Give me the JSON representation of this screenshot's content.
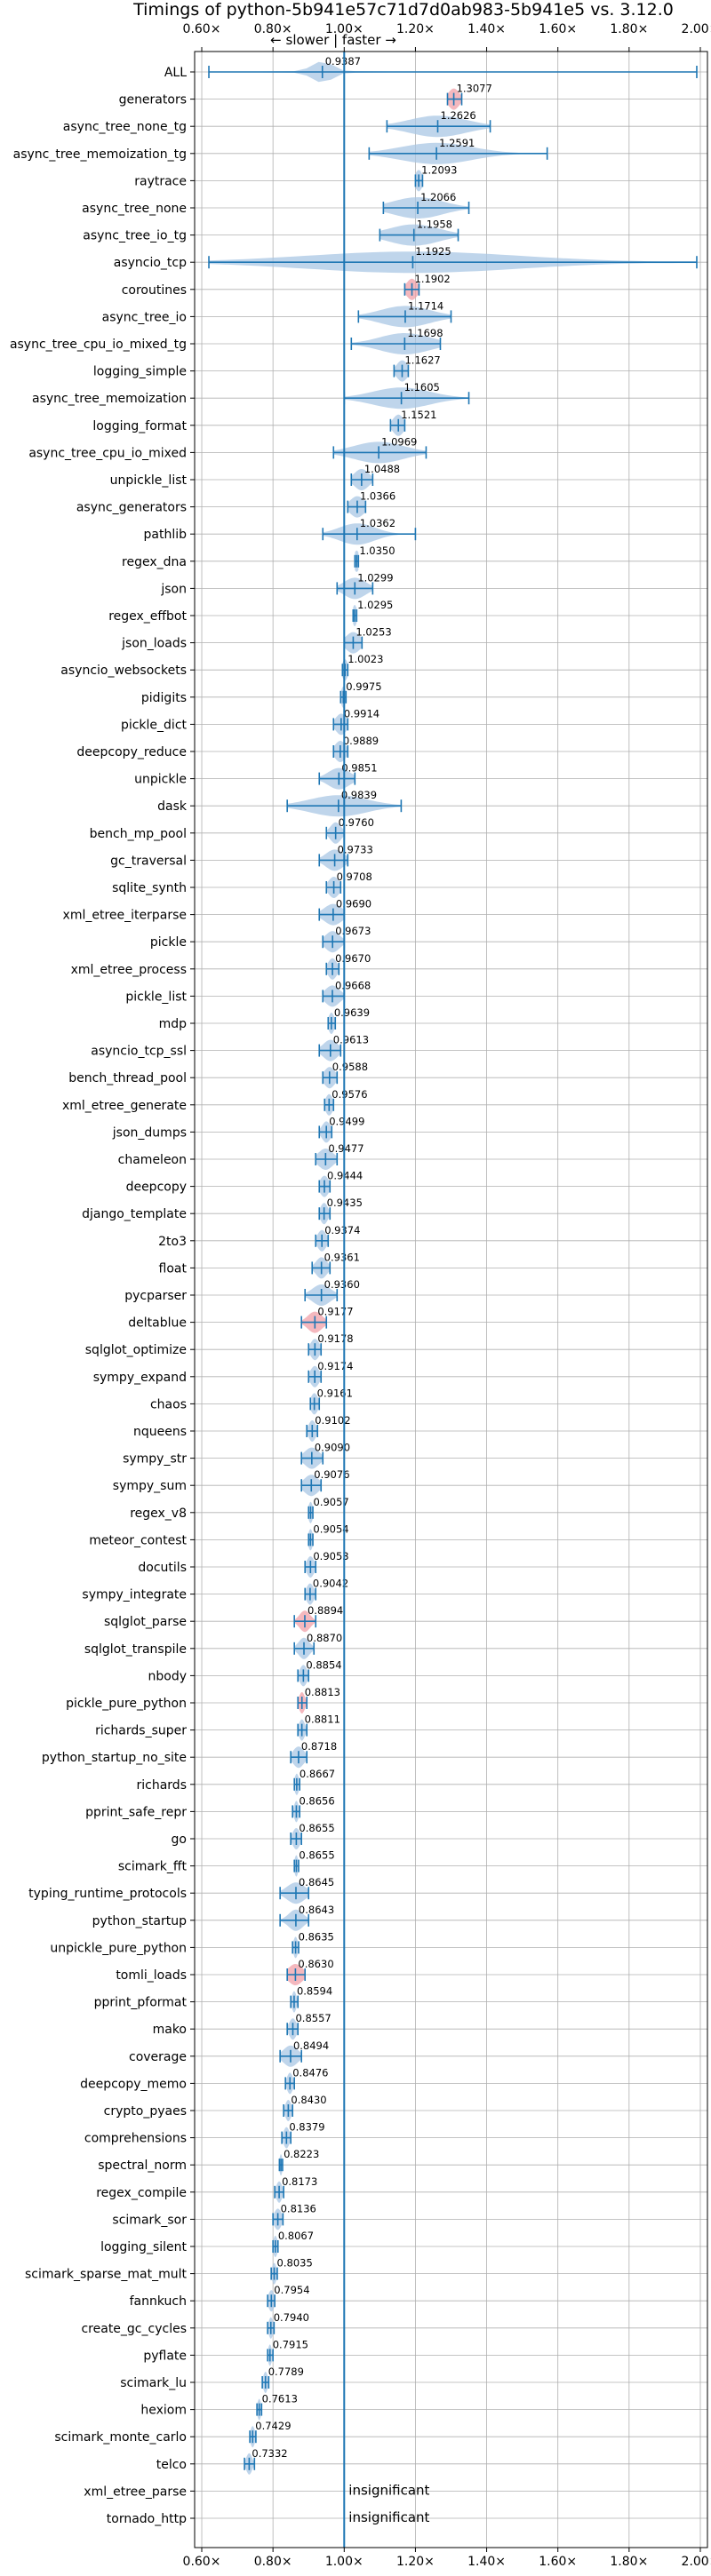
{
  "chart_data": {
    "type": "violin",
    "title": "Timings of python-5b941e57c71d7d0ab983-5b941e5 vs. 3.12.0",
    "direction_note": "← slower | faster →",
    "x_ticks": [
      "0.60×",
      "0.80×",
      "1.00×",
      "1.20×",
      "1.40×",
      "1.60×",
      "1.80×",
      "2.00×"
    ],
    "x_tick_values": [
      0.6,
      0.8,
      1.0,
      1.2,
      1.4,
      1.6,
      1.8,
      2.0
    ],
    "xlim": [
      0.58,
      2.02
    ],
    "grid": true,
    "reference_line": 1.0,
    "insignificant_label": "insignificant",
    "benchmarks": [
      {
        "name": "ALL",
        "value": "0.9387",
        "mean": 0.9387,
        "min": 0.62,
        "max": 1.99,
        "spread": 0.03,
        "color": "blue"
      },
      {
        "name": "generators",
        "value": "1.3077",
        "mean": 1.3077,
        "min": 1.29,
        "max": 1.33,
        "spread": 0.015,
        "color": "red"
      },
      {
        "name": "async_tree_none_tg",
        "value": "1.2626",
        "mean": 1.2626,
        "min": 1.12,
        "max": 1.41,
        "spread": 0.08,
        "color": "blue"
      },
      {
        "name": "async_tree_memoization_tg",
        "value": "1.2591",
        "mean": 1.2591,
        "min": 1.07,
        "max": 1.57,
        "spread": 0.1,
        "color": "blue"
      },
      {
        "name": "raytrace",
        "value": "1.2093",
        "mean": 1.2093,
        "min": 1.2,
        "max": 1.22,
        "spread": 0.01,
        "color": "blue"
      },
      {
        "name": "async_tree_none",
        "value": "1.2066",
        "mean": 1.2066,
        "min": 1.11,
        "max": 1.35,
        "spread": 0.07,
        "color": "blue"
      },
      {
        "name": "async_tree_io_tg",
        "value": "1.1958",
        "mean": 1.1958,
        "min": 1.1,
        "max": 1.32,
        "spread": 0.07,
        "color": "blue"
      },
      {
        "name": "asyncio_tcp",
        "value": "1.1925",
        "mean": 1.1925,
        "min": 0.62,
        "max": 1.99,
        "spread": 0.3,
        "color": "blue"
      },
      {
        "name": "coroutines",
        "value": "1.1902",
        "mean": 1.1902,
        "min": 1.17,
        "max": 1.21,
        "spread": 0.015,
        "color": "red"
      },
      {
        "name": "async_tree_io",
        "value": "1.1714",
        "mean": 1.1714,
        "min": 1.04,
        "max": 1.3,
        "spread": 0.07,
        "color": "blue"
      },
      {
        "name": "async_tree_cpu_io_mixed_tg",
        "value": "1.1698",
        "mean": 1.1698,
        "min": 1.02,
        "max": 1.27,
        "spread": 0.07,
        "color": "blue"
      },
      {
        "name": "logging_simple",
        "value": "1.1627",
        "mean": 1.1627,
        "min": 1.14,
        "max": 1.18,
        "spread": 0.015,
        "color": "blue"
      },
      {
        "name": "async_tree_memoization",
        "value": "1.1605",
        "mean": 1.1605,
        "min": 1.0,
        "max": 1.35,
        "spread": 0.08,
        "color": "blue"
      },
      {
        "name": "logging_format",
        "value": "1.1521",
        "mean": 1.1521,
        "min": 1.13,
        "max": 1.17,
        "spread": 0.015,
        "color": "blue"
      },
      {
        "name": "async_tree_cpu_io_mixed",
        "value": "1.0969",
        "mean": 1.0969,
        "min": 0.97,
        "max": 1.23,
        "spread": 0.07,
        "color": "blue"
      },
      {
        "name": "unpickle_list",
        "value": "1.0488",
        "mean": 1.0488,
        "min": 1.02,
        "max": 1.08,
        "spread": 0.02,
        "color": "blue"
      },
      {
        "name": "async_generators",
        "value": "1.0366",
        "mean": 1.0366,
        "min": 1.01,
        "max": 1.06,
        "spread": 0.02,
        "color": "blue"
      },
      {
        "name": "pathlib",
        "value": "1.0362",
        "mean": 1.0362,
        "min": 0.94,
        "max": 1.2,
        "spread": 0.05,
        "color": "blue"
      },
      {
        "name": "regex_dna",
        "value": "1.0350",
        "mean": 1.035,
        "min": 1.03,
        "max": 1.04,
        "spread": 0.008,
        "color": "blue"
      },
      {
        "name": "json",
        "value": "1.0299",
        "mean": 1.0299,
        "min": 0.98,
        "max": 1.08,
        "spread": 0.03,
        "color": "blue"
      },
      {
        "name": "regex_effbot",
        "value": "1.0295",
        "mean": 1.0295,
        "min": 1.025,
        "max": 1.035,
        "spread": 0.006,
        "color": "blue"
      },
      {
        "name": "json_loads",
        "value": "1.0253",
        "mean": 1.0253,
        "min": 1.0,
        "max": 1.05,
        "spread": 0.02,
        "color": "blue"
      },
      {
        "name": "asyncio_websockets",
        "value": "1.0023",
        "mean": 1.0023,
        "min": 0.995,
        "max": 1.01,
        "spread": 0.008,
        "color": "blue"
      },
      {
        "name": "pidigits",
        "value": "0.9975",
        "mean": 0.9975,
        "min": 0.99,
        "max": 1.005,
        "spread": 0.006,
        "color": "blue"
      },
      {
        "name": "pickle_dict",
        "value": "0.9914",
        "mean": 0.9914,
        "min": 0.97,
        "max": 1.01,
        "spread": 0.015,
        "color": "blue"
      },
      {
        "name": "deepcopy_reduce",
        "value": "0.9889",
        "mean": 0.9889,
        "min": 0.97,
        "max": 1.01,
        "spread": 0.015,
        "color": "blue"
      },
      {
        "name": "unpickle",
        "value": "0.9851",
        "mean": 0.9851,
        "min": 0.93,
        "max": 1.03,
        "spread": 0.03,
        "color": "blue"
      },
      {
        "name": "dask",
        "value": "0.9839",
        "mean": 0.9839,
        "min": 0.84,
        "max": 1.16,
        "spread": 0.08,
        "color": "blue"
      },
      {
        "name": "bench_mp_pool",
        "value": "0.9760",
        "mean": 0.976,
        "min": 0.95,
        "max": 1.0,
        "spread": 0.015,
        "color": "blue"
      },
      {
        "name": "gc_traversal",
        "value": "0.9733",
        "mean": 0.9733,
        "min": 0.93,
        "max": 1.01,
        "spread": 0.025,
        "color": "blue"
      },
      {
        "name": "sqlite_synth",
        "value": "0.9708",
        "mean": 0.9708,
        "min": 0.95,
        "max": 0.99,
        "spread": 0.015,
        "color": "blue"
      },
      {
        "name": "xml_etree_iterparse",
        "value": "0.9690",
        "mean": 0.969,
        "min": 0.93,
        "max": 1.0,
        "spread": 0.025,
        "color": "blue"
      },
      {
        "name": "pickle",
        "value": "0.9673",
        "mean": 0.9673,
        "min": 0.94,
        "max": 1.0,
        "spread": 0.02,
        "color": "blue"
      },
      {
        "name": "xml_etree_process",
        "value": "0.9670",
        "mean": 0.967,
        "min": 0.95,
        "max": 0.985,
        "spread": 0.012,
        "color": "blue"
      },
      {
        "name": "pickle_list",
        "value": "0.9668",
        "mean": 0.9668,
        "min": 0.94,
        "max": 1.0,
        "spread": 0.02,
        "color": "blue"
      },
      {
        "name": "mdp",
        "value": "0.9639",
        "mean": 0.9639,
        "min": 0.955,
        "max": 0.975,
        "spread": 0.008,
        "color": "blue"
      },
      {
        "name": "asyncio_tcp_ssl",
        "value": "0.9613",
        "mean": 0.9613,
        "min": 0.93,
        "max": 0.99,
        "spread": 0.02,
        "color": "blue"
      },
      {
        "name": "bench_thread_pool",
        "value": "0.9588",
        "mean": 0.9588,
        "min": 0.94,
        "max": 0.98,
        "spread": 0.015,
        "color": "blue"
      },
      {
        "name": "xml_etree_generate",
        "value": "0.9576",
        "mean": 0.9576,
        "min": 0.945,
        "max": 0.97,
        "spread": 0.01,
        "color": "blue"
      },
      {
        "name": "json_dumps",
        "value": "0.9499",
        "mean": 0.9499,
        "min": 0.93,
        "max": 0.965,
        "spread": 0.012,
        "color": "blue"
      },
      {
        "name": "chameleon",
        "value": "0.9477",
        "mean": 0.9477,
        "min": 0.92,
        "max": 0.98,
        "spread": 0.02,
        "color": "blue"
      },
      {
        "name": "deepcopy",
        "value": "0.9444",
        "mean": 0.9444,
        "min": 0.93,
        "max": 0.96,
        "spread": 0.012,
        "color": "blue"
      },
      {
        "name": "django_template",
        "value": "0.9435",
        "mean": 0.9435,
        "min": 0.93,
        "max": 0.96,
        "spread": 0.01,
        "color": "blue"
      },
      {
        "name": "2to3",
        "value": "0.9374",
        "mean": 0.9374,
        "min": 0.92,
        "max": 0.955,
        "spread": 0.012,
        "color": "blue"
      },
      {
        "name": "float",
        "value": "0.9361",
        "mean": 0.9361,
        "min": 0.91,
        "max": 0.96,
        "spread": 0.015,
        "color": "blue"
      },
      {
        "name": "pycparser",
        "value": "0.9360",
        "mean": 0.936,
        "min": 0.89,
        "max": 0.98,
        "spread": 0.025,
        "color": "blue"
      },
      {
        "name": "deltablue",
        "value": "0.9177",
        "mean": 0.9177,
        "min": 0.88,
        "max": 0.95,
        "spread": 0.02,
        "color": "red"
      },
      {
        "name": "sqlglot_optimize",
        "value": "0.9178",
        "mean": 0.9178,
        "min": 0.9,
        "max": 0.935,
        "spread": 0.012,
        "color": "blue"
      },
      {
        "name": "sympy_expand",
        "value": "0.9174",
        "mean": 0.9174,
        "min": 0.9,
        "max": 0.935,
        "spread": 0.012,
        "color": "blue"
      },
      {
        "name": "chaos",
        "value": "0.9161",
        "mean": 0.9161,
        "min": 0.905,
        "max": 0.93,
        "spread": 0.01,
        "color": "blue"
      },
      {
        "name": "nqueens",
        "value": "0.9102",
        "mean": 0.9102,
        "min": 0.895,
        "max": 0.925,
        "spread": 0.01,
        "color": "blue"
      },
      {
        "name": "sympy_str",
        "value": "0.9090",
        "mean": 0.909,
        "min": 0.88,
        "max": 0.94,
        "spread": 0.02,
        "color": "blue"
      },
      {
        "name": "sympy_sum",
        "value": "0.9076",
        "mean": 0.9076,
        "min": 0.88,
        "max": 0.935,
        "spread": 0.02,
        "color": "blue"
      },
      {
        "name": "regex_v8",
        "value": "0.9057",
        "mean": 0.9057,
        "min": 0.9,
        "max": 0.912,
        "spread": 0.006,
        "color": "blue"
      },
      {
        "name": "meteor_contest",
        "value": "0.9054",
        "mean": 0.9054,
        "min": 0.9,
        "max": 0.912,
        "spread": 0.006,
        "color": "blue"
      },
      {
        "name": "docutils",
        "value": "0.9053",
        "mean": 0.9053,
        "min": 0.89,
        "max": 0.92,
        "spread": 0.01,
        "color": "blue"
      },
      {
        "name": "sympy_integrate",
        "value": "0.9042",
        "mean": 0.9042,
        "min": 0.89,
        "max": 0.92,
        "spread": 0.01,
        "color": "blue"
      },
      {
        "name": "sqlglot_parse",
        "value": "0.8894",
        "mean": 0.8894,
        "min": 0.86,
        "max": 0.92,
        "spread": 0.015,
        "color": "red"
      },
      {
        "name": "sqlglot_transpile",
        "value": "0.8870",
        "mean": 0.887,
        "min": 0.86,
        "max": 0.915,
        "spread": 0.015,
        "color": "blue"
      },
      {
        "name": "nbody",
        "value": "0.8854",
        "mean": 0.8854,
        "min": 0.87,
        "max": 0.9,
        "spread": 0.01,
        "color": "blue"
      },
      {
        "name": "pickle_pure_python",
        "value": "0.8813",
        "mean": 0.8813,
        "min": 0.87,
        "max": 0.895,
        "spread": 0.008,
        "color": "red"
      },
      {
        "name": "richards_super",
        "value": "0.8811",
        "mean": 0.8811,
        "min": 0.87,
        "max": 0.895,
        "spread": 0.008,
        "color": "blue"
      },
      {
        "name": "python_startup_no_site",
        "value": "0.8718",
        "mean": 0.8718,
        "min": 0.85,
        "max": 0.895,
        "spread": 0.015,
        "color": "blue"
      },
      {
        "name": "richards",
        "value": "0.8667",
        "mean": 0.8667,
        "min": 0.86,
        "max": 0.875,
        "spread": 0.006,
        "color": "blue"
      },
      {
        "name": "pprint_safe_repr",
        "value": "0.8656",
        "mean": 0.8656,
        "min": 0.855,
        "max": 0.875,
        "spread": 0.006,
        "color": "blue"
      },
      {
        "name": "go",
        "value": "0.8655",
        "mean": 0.8655,
        "min": 0.85,
        "max": 0.88,
        "spread": 0.01,
        "color": "blue"
      },
      {
        "name": "scimark_fft",
        "value": "0.8655",
        "mean": 0.8655,
        "min": 0.86,
        "max": 0.872,
        "spread": 0.005,
        "color": "blue"
      },
      {
        "name": "typing_runtime_protocols",
        "value": "0.8645",
        "mean": 0.8645,
        "min": 0.82,
        "max": 0.9,
        "spread": 0.025,
        "color": "blue"
      },
      {
        "name": "python_startup",
        "value": "0.8643",
        "mean": 0.8643,
        "min": 0.82,
        "max": 0.9,
        "spread": 0.02,
        "color": "blue"
      },
      {
        "name": "unpickle_pure_python",
        "value": "0.8635",
        "mean": 0.8635,
        "min": 0.855,
        "max": 0.872,
        "spread": 0.006,
        "color": "blue"
      },
      {
        "name": "tomli_loads",
        "value": "0.8630",
        "mean": 0.863,
        "min": 0.84,
        "max": 0.89,
        "spread": 0.02,
        "color": "red"
      },
      {
        "name": "pprint_pformat",
        "value": "0.8594",
        "mean": 0.8594,
        "min": 0.85,
        "max": 0.87,
        "spread": 0.006,
        "color": "blue"
      },
      {
        "name": "mako",
        "value": "0.8557",
        "mean": 0.8557,
        "min": 0.84,
        "max": 0.87,
        "spread": 0.01,
        "color": "blue"
      },
      {
        "name": "coverage",
        "value": "0.8494",
        "mean": 0.8494,
        "min": 0.82,
        "max": 0.88,
        "spread": 0.02,
        "color": "blue"
      },
      {
        "name": "deepcopy_memo",
        "value": "0.8476",
        "mean": 0.8476,
        "min": 0.835,
        "max": 0.86,
        "spread": 0.008,
        "color": "blue"
      },
      {
        "name": "crypto_pyaes",
        "value": "0.8430",
        "mean": 0.843,
        "min": 0.83,
        "max": 0.855,
        "spread": 0.008,
        "color": "blue"
      },
      {
        "name": "comprehensions",
        "value": "0.8379",
        "mean": 0.8379,
        "min": 0.825,
        "max": 0.85,
        "spread": 0.008,
        "color": "blue"
      },
      {
        "name": "spectral_norm",
        "value": "0.8223",
        "mean": 0.8223,
        "min": 0.818,
        "max": 0.827,
        "spread": 0.004,
        "color": "blue"
      },
      {
        "name": "regex_compile",
        "value": "0.8173",
        "mean": 0.8173,
        "min": 0.805,
        "max": 0.83,
        "spread": 0.008,
        "color": "blue"
      },
      {
        "name": "scimark_sor",
        "value": "0.8136",
        "mean": 0.8136,
        "min": 0.8,
        "max": 0.828,
        "spread": 0.01,
        "color": "blue"
      },
      {
        "name": "logging_silent",
        "value": "0.8067",
        "mean": 0.8067,
        "min": 0.8,
        "max": 0.814,
        "spread": 0.006,
        "color": "blue"
      },
      {
        "name": "scimark_sparse_mat_mult",
        "value": "0.8035",
        "mean": 0.8035,
        "min": 0.795,
        "max": 0.812,
        "spread": 0.006,
        "color": "blue"
      },
      {
        "name": "fannkuch",
        "value": "0.7954",
        "mean": 0.7954,
        "min": 0.785,
        "max": 0.805,
        "spread": 0.008,
        "color": "blue"
      },
      {
        "name": "create_gc_cycles",
        "value": "0.7940",
        "mean": 0.794,
        "min": 0.785,
        "max": 0.803,
        "spread": 0.006,
        "color": "blue"
      },
      {
        "name": "pyflate",
        "value": "0.7915",
        "mean": 0.7915,
        "min": 0.785,
        "max": 0.8,
        "spread": 0.005,
        "color": "blue"
      },
      {
        "name": "scimark_lu",
        "value": "0.7789",
        "mean": 0.7789,
        "min": 0.77,
        "max": 0.788,
        "spread": 0.006,
        "color": "blue"
      },
      {
        "name": "hexiom",
        "value": "0.7613",
        "mean": 0.7613,
        "min": 0.755,
        "max": 0.768,
        "spread": 0.005,
        "color": "blue"
      },
      {
        "name": "scimark_monte_carlo",
        "value": "0.7429",
        "mean": 0.7429,
        "min": 0.735,
        "max": 0.752,
        "spread": 0.006,
        "color": "blue"
      },
      {
        "name": "telco",
        "value": "0.7332",
        "mean": 0.7332,
        "min": 0.72,
        "max": 0.748,
        "spread": 0.008,
        "color": "blue"
      },
      {
        "name": "xml_etree_parse",
        "value": "",
        "insignificant": true
      },
      {
        "name": "tornado_http",
        "value": "",
        "insignificant": true
      }
    ],
    "colors": {
      "line": "#1f77b4",
      "fill": "#aac7e4",
      "significant_fill": "#f0a0a8",
      "grid": "#b0b0b0"
    }
  }
}
